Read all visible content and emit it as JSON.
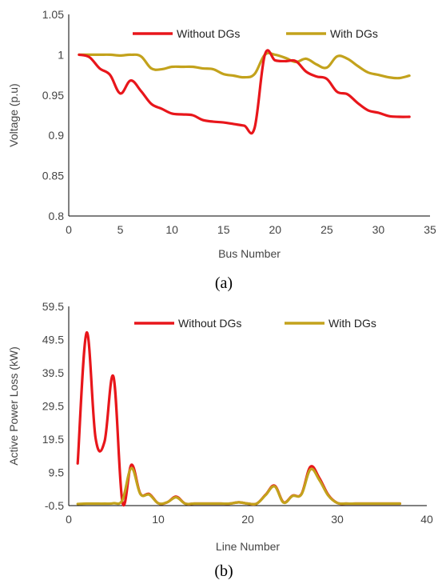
{
  "chart_data": [
    {
      "type": "line",
      "caption": "(a)",
      "xlabel": "Bus Number",
      "ylabel": "Voltage (p.u)",
      "xlim": [
        0,
        35
      ],
      "ylim": [
        0.8,
        1.05
      ],
      "xticks": [
        0,
        5,
        10,
        15,
        20,
        25,
        30,
        35
      ],
      "xtick_labels": [
        "0",
        "5",
        "10",
        "15",
        "20",
        "25",
        "30",
        "35"
      ],
      "yticks": [
        0.8,
        0.85,
        0.9,
        0.95,
        1.0,
        1.05
      ],
      "ytick_labels": [
        "0.8",
        "0.85",
        "0.9",
        "0.95",
        "1",
        "1.05"
      ],
      "grid": false,
      "legend_position": "top",
      "series": [
        {
          "name": "Without DGs",
          "color": "#e8161b",
          "x": [
            1,
            2,
            3,
            4,
            5,
            6,
            7,
            8,
            9,
            10,
            11,
            12,
            13,
            14,
            15,
            16,
            17,
            18,
            19,
            20,
            21,
            22,
            23,
            24,
            25,
            26,
            27,
            28,
            29,
            30,
            31,
            32,
            33
          ],
          "values": [
            1.0,
            0.997,
            0.983,
            0.975,
            0.952,
            0.968,
            0.955,
            0.939,
            0.933,
            0.927,
            0.926,
            0.925,
            0.919,
            0.917,
            0.916,
            0.914,
            0.912,
            0.909,
            1.0,
            0.993,
            0.992,
            0.992,
            0.979,
            0.973,
            0.97,
            0.954,
            0.951,
            0.94,
            0.931,
            0.928,
            0.924,
            0.923,
            0.923
          ]
        },
        {
          "name": "With DGs",
          "color": "#c3a21c",
          "x": [
            1,
            2,
            3,
            4,
            5,
            6,
            7,
            8,
            9,
            10,
            11,
            12,
            13,
            14,
            15,
            16,
            17,
            18,
            19,
            20,
            21,
            22,
            23,
            24,
            25,
            26,
            27,
            28,
            29,
            30,
            31,
            32,
            33
          ],
          "values": [
            1.0,
            1.0,
            1.0,
            1.0,
            0.999,
            1.0,
            0.998,
            0.983,
            0.982,
            0.985,
            0.985,
            0.985,
            0.983,
            0.982,
            0.976,
            0.974,
            0.972,
            0.976,
            1.0,
            1.0,
            0.996,
            0.991,
            0.995,
            0.988,
            0.984,
            0.998,
            0.995,
            0.986,
            0.978,
            0.975,
            0.972,
            0.971,
            0.974
          ]
        }
      ]
    },
    {
      "type": "line",
      "caption": "(b)",
      "xlabel": "Line Number",
      "ylabel": "Active Power Loss (kW)",
      "xlim": [
        0,
        40
      ],
      "ylim": [
        -0.5,
        59.5
      ],
      "xticks": [
        0,
        10,
        20,
        30,
        40
      ],
      "xtick_labels": [
        "0",
        "10",
        "20",
        "30",
        "40"
      ],
      "yticks": [
        -0.5,
        9.5,
        19.5,
        29.5,
        39.5,
        49.5,
        59.5
      ],
      "ytick_labels": [
        "-0.5",
        "9.5",
        "19.5",
        "29.5",
        "39.5",
        "49.5",
        "59.5"
      ],
      "grid": false,
      "legend_position": "top",
      "series": [
        {
          "name": "Without DGs",
          "color": "#e8161b",
          "x": [
            1,
            2,
            3,
            4,
            5,
            6,
            7,
            8,
            9,
            10,
            11,
            12,
            13,
            14,
            15,
            16,
            17,
            18,
            19,
            20,
            21,
            22,
            23,
            24,
            25,
            26,
            27,
            28,
            29,
            30,
            31,
            32,
            33,
            34,
            35,
            36,
            37
          ],
          "values": [
            12.2,
            51.6,
            19.8,
            18.8,
            38.3,
            0.5,
            11.8,
            3.1,
            3.0,
            0.2,
            0.5,
            2.2,
            0.1,
            0.1,
            0.1,
            0.1,
            0.1,
            0.1,
            0.5,
            0.1,
            0.1,
            2.8,
            5.5,
            0.5,
            2.5,
            3.0,
            11.2,
            7.8,
            2.7,
            0.3,
            0.1,
            0.1,
            0.1,
            0.1,
            0.1,
            0.1,
            0.1
          ]
        },
        {
          "name": "With DGs",
          "color": "#c3a21c",
          "x": [
            1,
            2,
            3,
            4,
            5,
            6,
            7,
            8,
            9,
            10,
            11,
            12,
            13,
            14,
            15,
            16,
            17,
            18,
            19,
            20,
            21,
            22,
            23,
            24,
            25,
            26,
            27,
            28,
            29,
            30,
            31,
            32,
            33,
            34,
            35,
            36,
            37
          ],
          "values": [
            0.0,
            0.1,
            0.1,
            0.1,
            0.2,
            1.2,
            10.8,
            3.0,
            2.8,
            0.2,
            0.5,
            2.0,
            0.1,
            0.1,
            0.1,
            0.1,
            0.1,
            0.1,
            0.5,
            0.1,
            0.1,
            2.7,
            5.3,
            0.4,
            2.4,
            2.9,
            10.4,
            7.2,
            2.5,
            0.3,
            0.1,
            0.1,
            0.1,
            0.1,
            0.1,
            0.1,
            0.1
          ]
        }
      ]
    }
  ]
}
